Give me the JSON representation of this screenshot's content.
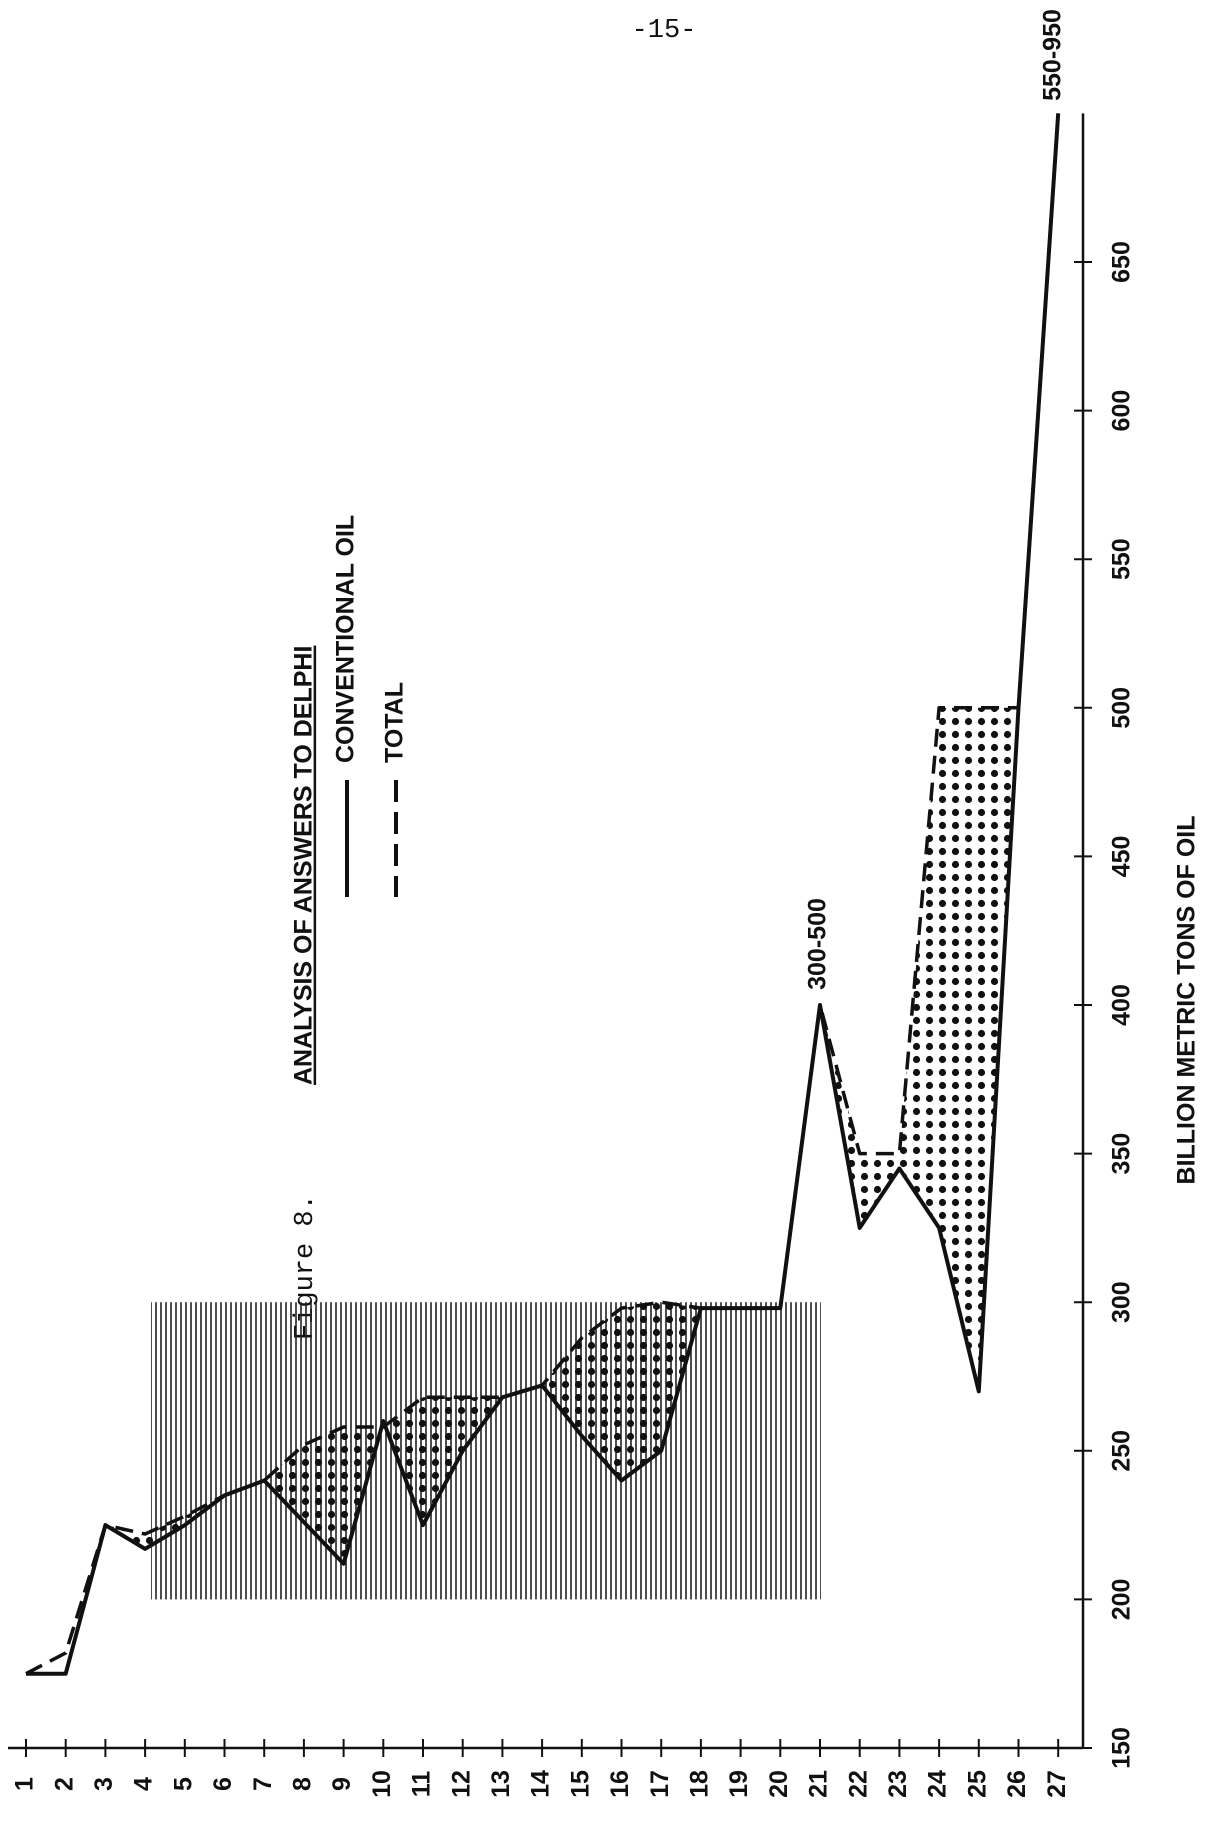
{
  "page_number": "-15-",
  "figure_label": "Figure 8.",
  "title": "ANALYSIS OF ANSWERS TO DELPHI",
  "chart_data": {
    "type": "line",
    "categories": [
      "1",
      "2",
      "3",
      "4",
      "5",
      "6",
      "7",
      "8",
      "9",
      "10",
      "11",
      "12",
      "13",
      "14",
      "15",
      "16",
      "17",
      "18",
      "19",
      "20",
      "21",
      "22",
      "23",
      "24",
      "25",
      "26",
      "27"
    ],
    "series": [
      {
        "name": "CONVENTIONAL OIL",
        "color": "#111111",
        "dashed": false,
        "values": [
          175,
          175,
          225,
          217,
          225,
          235,
          240,
          226,
          212,
          260,
          225,
          250,
          268,
          272,
          255,
          240,
          250,
          298,
          298,
          298,
          400,
          325,
          345,
          325,
          270,
          500,
          700
        ]
      },
      {
        "name": "TOTAL",
        "color": "#111111",
        "dashed": true,
        "values": [
          175,
          182,
          225,
          222,
          228,
          235,
          240,
          252,
          258,
          258,
          268,
          268,
          268,
          272,
          288,
          298,
          300,
          298,
          298,
          298,
          400,
          350,
          350,
          500,
          500,
          500,
          700
        ]
      }
    ],
    "ylabel": "BILLION METRIC TONS OF OIL",
    "ylim": [
      150,
      700
    ],
    "yticks": [
      150,
      200,
      250,
      300,
      350,
      400,
      450,
      500,
      550,
      600,
      650
    ],
    "band": [
      200,
      300
    ],
    "annotations": [
      "300-500",
      "550-950"
    ]
  }
}
